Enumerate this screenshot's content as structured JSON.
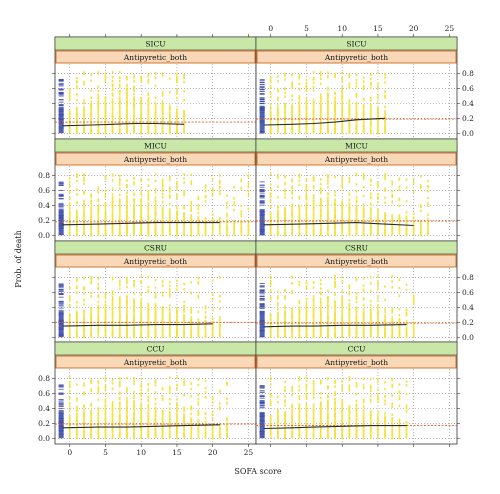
{
  "chart_data": {
    "type": "scatter",
    "xlabel": "SOFA score",
    "ylabel": "Prob. of death",
    "x_ticks": [
      0,
      5,
      10,
      15,
      20,
      25
    ],
    "y_ticks": [
      0.0,
      0.2,
      0.4,
      0.6,
      0.8
    ],
    "xlim": [
      -1.5,
      25.5
    ],
    "ylim": [
      -0.05,
      0.9
    ],
    "grid": true,
    "colors": {
      "points": "#f2e23a",
      "rug": "#4050a8",
      "smooth": "#2b2b2b",
      "reference": "#e05a1a",
      "strip_unit": "#c9e7a6",
      "strip_treatment": "#f9d8b8",
      "strip_treatment_border": "#d06a20",
      "grid": "#888888"
    },
    "panels": [
      {
        "unit": "SICU",
        "treatment": "Antipyretic_both",
        "col": 0,
        "row": 0,
        "xmax": 16,
        "ref": 0.15,
        "smooth": {
          "x": [
            -1,
            3,
            6,
            9,
            12,
            16
          ],
          "y": [
            0.1,
            0.11,
            0.12,
            0.13,
            0.13,
            0.12
          ]
        }
      },
      {
        "unit": "SICU",
        "treatment": "Antipyretic_both",
        "col": 1,
        "row": 0,
        "xmax": 16,
        "ref": 0.19,
        "smooth": {
          "x": [
            -1,
            3,
            6,
            9,
            12,
            16
          ],
          "y": [
            0.11,
            0.12,
            0.13,
            0.15,
            0.18,
            0.2
          ]
        }
      },
      {
        "unit": "MICU",
        "treatment": "Antipyretic_both",
        "col": 0,
        "row": 1,
        "xmax": 25,
        "ref": 0.18,
        "smooth": {
          "x": [
            -1,
            4,
            8,
            12,
            16,
            21
          ],
          "y": [
            0.14,
            0.15,
            0.16,
            0.17,
            0.17,
            0.17
          ]
        }
      },
      {
        "unit": "MICU",
        "treatment": "Antipyretic_both",
        "col": 1,
        "row": 1,
        "xmax": 22,
        "ref": 0.19,
        "smooth": {
          "x": [
            -1,
            4,
            8,
            12,
            16,
            20
          ],
          "y": [
            0.14,
            0.15,
            0.16,
            0.17,
            0.15,
            0.13
          ]
        }
      },
      {
        "unit": "CSRU",
        "treatment": "Antipyretic_both",
        "col": 0,
        "row": 2,
        "xmax": 21,
        "ref": 0.2,
        "smooth": {
          "x": [
            -1,
            4,
            8,
            12,
            16,
            20
          ],
          "y": [
            0.15,
            0.16,
            0.16,
            0.17,
            0.17,
            0.18
          ]
        }
      },
      {
        "unit": "CSRU",
        "treatment": "Antipyretic_both",
        "col": 1,
        "row": 2,
        "xmax": 20,
        "ref": 0.19,
        "smooth": {
          "x": [
            -1,
            3,
            6,
            10,
            14,
            19
          ],
          "y": [
            0.14,
            0.15,
            0.15,
            0.16,
            0.16,
            0.17
          ]
        }
      },
      {
        "unit": "CCU",
        "treatment": "Antipyretic_both",
        "col": 0,
        "row": 3,
        "xmax": 22,
        "ref": 0.19,
        "smooth": {
          "x": [
            -1,
            4,
            8,
            12,
            16,
            21
          ],
          "y": [
            0.14,
            0.15,
            0.15,
            0.16,
            0.17,
            0.18
          ]
        }
      },
      {
        "unit": "CCU",
        "treatment": "Antipyretic_both",
        "col": 1,
        "row": 3,
        "xmax": 19,
        "ref": 0.17,
        "smooth": {
          "x": [
            -1,
            3,
            6,
            10,
            14,
            19
          ],
          "y": [
            0.13,
            0.14,
            0.15,
            0.16,
            0.17,
            0.17
          ]
        }
      }
    ]
  }
}
